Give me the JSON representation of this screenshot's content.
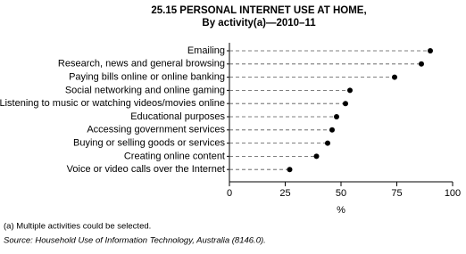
{
  "chart_data": {
    "type": "dot",
    "title": "25.15  PERSONAL INTERNET USE AT HOME,",
    "subtitle": "By activity(a)—2010–11",
    "categories": [
      "Emailing",
      "Research, news and general browsing",
      "Paying bills online or online banking",
      "Social networking and online gaming",
      "Listening to music or watching videos/movies online",
      "Educational purposes",
      "Accessing government services",
      "Buying or selling goods or services",
      "Creating online content",
      "Voice or video calls over the Internet"
    ],
    "values": [
      90,
      86,
      74,
      54,
      52,
      48,
      46,
      44,
      39,
      27
    ],
    "color": "#000000",
    "xlim": [
      0,
      100
    ],
    "xticks": [
      0,
      25,
      50,
      75,
      100
    ],
    "xlabel": "%",
    "note": "(a) Multiple activities could be selected.",
    "source": "Source: Household Use of Information Technology, Australia (8146.0)."
  }
}
